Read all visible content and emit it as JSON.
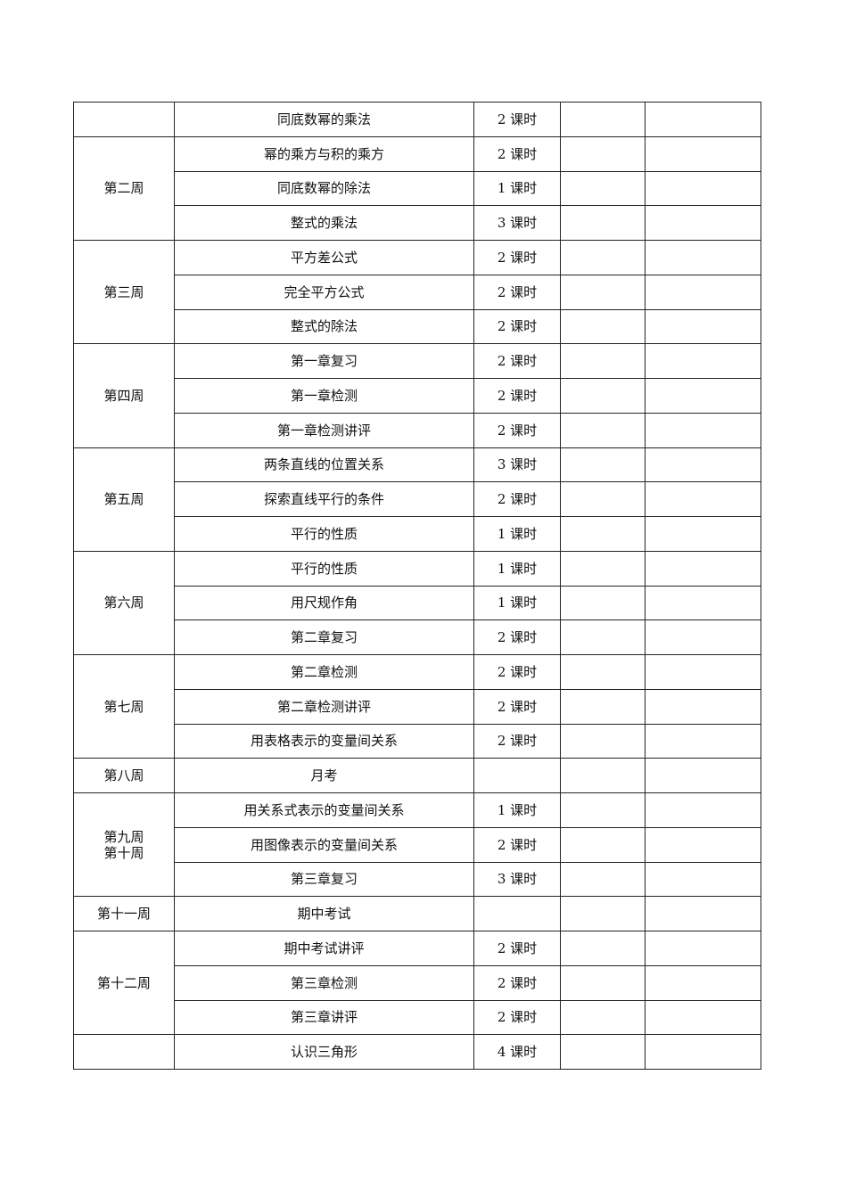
{
  "schedule": [
    {
      "week": "",
      "lessons": [
        {
          "topic": "同底数幂的乘法",
          "hours": "2 课时"
        }
      ]
    },
    {
      "week": "第二周",
      "lessons": [
        {
          "topic": "幂的乘方与积的乘方",
          "hours": "2 课时"
        },
        {
          "topic": "同底数幂的除法",
          "hours": "1 课时"
        },
        {
          "topic": "整式的乘法",
          "hours": "3 课时"
        }
      ]
    },
    {
      "week": "第三周",
      "lessons": [
        {
          "topic": "平方差公式",
          "hours": "2 课时"
        },
        {
          "topic": "完全平方公式",
          "hours": "2 课时"
        },
        {
          "topic": "整式的除法",
          "hours": "2 课时"
        }
      ]
    },
    {
      "week": "第四周",
      "lessons": [
        {
          "topic": "第一章复习",
          "hours": "2 课时"
        },
        {
          "topic": "第一章检测",
          "hours": "2 课时"
        },
        {
          "topic": "第一章检测讲评",
          "hours": "2 课时"
        }
      ]
    },
    {
      "week": "第五周",
      "lessons": [
        {
          "topic": "两条直线的位置关系",
          "hours": "3 课时"
        },
        {
          "topic": "探索直线平行的条件",
          "hours": "2 课时"
        },
        {
          "topic": "平行的性质",
          "hours": "1 课时"
        }
      ]
    },
    {
      "week": "第六周",
      "lessons": [
        {
          "topic": "平行的性质",
          "hours": "1 课时"
        },
        {
          "topic": "用尺规作角",
          "hours": "1 课时"
        },
        {
          "topic": "第二章复习",
          "hours": "2 课时"
        }
      ]
    },
    {
      "week": "第七周",
      "lessons": [
        {
          "topic": "第二章检测",
          "hours": "2 课时"
        },
        {
          "topic": "第二章检测讲评",
          "hours": "2 课时"
        },
        {
          "topic": "用表格表示的变量间关系",
          "hours": "2 课时"
        }
      ]
    },
    {
      "week": "第八周",
      "lessons": [
        {
          "topic": "月考",
          "hours": ""
        }
      ]
    },
    {
      "week": "第九周\n第十周",
      "lessons": [
        {
          "topic": "用关系式表示的变量间关系",
          "hours": "1 课时"
        },
        {
          "topic": "用图像表示的变量间关系",
          "hours": "2 课时"
        },
        {
          "topic": "第三章复习",
          "hours": "3 课时"
        }
      ]
    },
    {
      "week": "第十一周",
      "lessons": [
        {
          "topic": "期中考试",
          "hours": ""
        }
      ]
    },
    {
      "week": "第十二周",
      "lessons": [
        {
          "topic": "期中考试讲评",
          "hours": "2 课时"
        },
        {
          "topic": "第三章检测",
          "hours": "2 课时"
        },
        {
          "topic": "第三章讲评",
          "hours": "2 课时"
        }
      ]
    },
    {
      "week": "",
      "lessons": [
        {
          "topic": "认识三角形",
          "hours": "4 课时"
        }
      ]
    }
  ]
}
